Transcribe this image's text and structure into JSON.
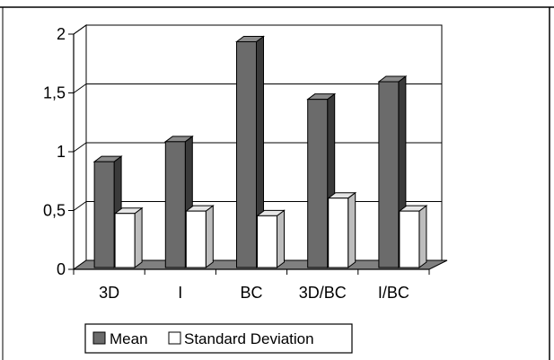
{
  "chart_data": {
    "type": "bar",
    "variant": "3d-clustered-column",
    "categories": [
      "3D",
      "I",
      "BC",
      "3D/BC",
      "I/BC"
    ],
    "series": [
      {
        "name": "Mean",
        "values": [
          0.9,
          1.07,
          1.92,
          1.43,
          1.58
        ],
        "color": "#6b6b6b"
      },
      {
        "name": "Standard Deviation",
        "values": [
          0.46,
          0.48,
          0.44,
          0.59,
          0.48
        ],
        "color": "#ffffff"
      }
    ],
    "y_ticks": [
      0,
      0.5,
      1,
      1.5,
      2
    ],
    "y_tick_labels": [
      "0",
      "0,5",
      "1",
      "1,5",
      "2"
    ],
    "ylim": [
      0,
      2
    ],
    "grid": true,
    "legend_position": "bottom-left",
    "title": "",
    "xlabel": "",
    "ylabel": ""
  },
  "colors": {
    "frame": "#000000",
    "gridline": "#000000",
    "floor": "#808080",
    "wall": "#ffffff",
    "mean_front": "#6b6b6b",
    "mean_side": "#3a3a3a",
    "mean_top": "#8a8a8a",
    "sd_front": "#ffffff",
    "sd_side": "#bdbdbd",
    "sd_top": "#e6e6e6"
  }
}
